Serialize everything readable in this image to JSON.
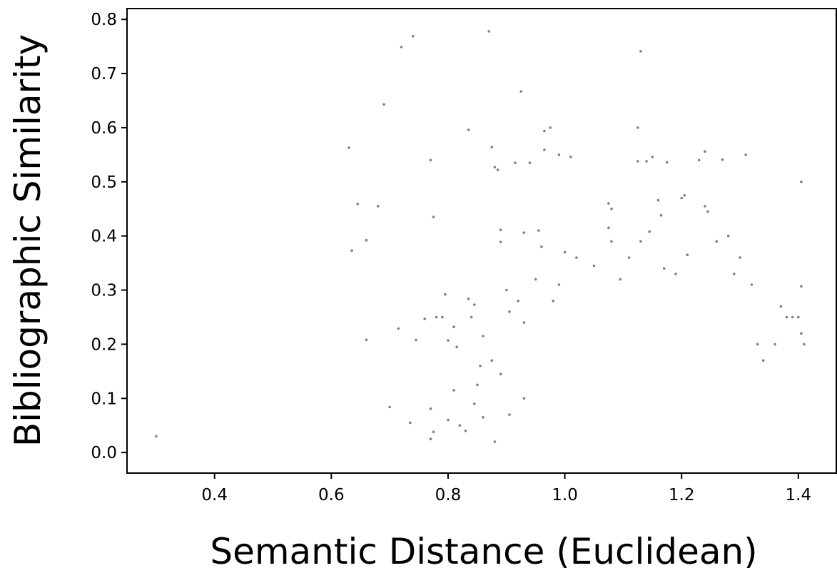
{
  "chart_data": {
    "type": "scatter",
    "xlabel": "Semantic Distance (Euclidean)",
    "ylabel": "Bibliographic Similarity",
    "xlim": [
      0.25,
      1.465
    ],
    "ylim": [
      -0.038,
      0.82
    ],
    "xticks": [
      0.4,
      0.6,
      0.8,
      1.0,
      1.2,
      1.4
    ],
    "xtick_labels": [
      "0.4",
      "0.6",
      "0.8",
      "1.0",
      "1.2",
      "1.4"
    ],
    "yticks": [
      0.0,
      0.1,
      0.2,
      0.3,
      0.4,
      0.5,
      0.6,
      0.7,
      0.8
    ],
    "ytick_labels": [
      "0.0",
      "0.1",
      "0.2",
      "0.3",
      "0.4",
      "0.5",
      "0.6",
      "0.7",
      "0.8"
    ],
    "grid": false,
    "marker_color": "#808080",
    "points": [
      [
        0.3,
        0.03
      ],
      [
        0.63,
        0.563
      ],
      [
        0.635,
        0.373
      ],
      [
        0.645,
        0.459
      ],
      [
        0.66,
        0.208
      ],
      [
        0.66,
        0.392
      ],
      [
        0.68,
        0.455
      ],
      [
        0.69,
        0.643
      ],
      [
        0.7,
        0.084
      ],
      [
        0.715,
        0.229
      ],
      [
        0.72,
        0.749
      ],
      [
        0.735,
        0.055
      ],
      [
        0.74,
        0.769
      ],
      [
        0.745,
        0.208
      ],
      [
        0.76,
        0.247
      ],
      [
        0.77,
        0.54
      ],
      [
        0.775,
        0.435
      ],
      [
        0.77,
        0.081
      ],
      [
        0.775,
        0.038
      ],
      [
        0.77,
        0.025
      ],
      [
        0.795,
        0.292
      ],
      [
        0.79,
        0.25
      ],
      [
        0.78,
        0.25
      ],
      [
        0.8,
        0.207
      ],
      [
        0.81,
        0.115
      ],
      [
        0.81,
        0.232
      ],
      [
        0.815,
        0.195
      ],
      [
        0.835,
        0.596
      ],
      [
        0.835,
        0.284
      ],
      [
        0.84,
        0.25
      ],
      [
        0.845,
        0.273
      ],
      [
        0.82,
        0.05
      ],
      [
        0.85,
        0.125
      ],
      [
        0.855,
        0.16
      ],
      [
        0.87,
        0.778
      ],
      [
        0.875,
        0.564
      ],
      [
        0.88,
        0.527
      ],
      [
        0.885,
        0.522
      ],
      [
        0.89,
        0.411
      ],
      [
        0.89,
        0.389
      ],
      [
        0.9,
        0.3
      ],
      [
        0.905,
        0.26
      ],
      [
        0.915,
        0.535
      ],
      [
        0.925,
        0.667
      ],
      [
        0.93,
        0.406
      ],
      [
        0.94,
        0.535
      ],
      [
        0.955,
        0.41
      ],
      [
        0.96,
        0.38
      ],
      [
        0.965,
        0.594
      ],
      [
        0.965,
        0.559
      ],
      [
        0.975,
        0.6
      ],
      [
        0.99,
        0.55
      ],
      [
        1.01,
        0.546
      ],
      [
        1.0,
        0.37
      ],
      [
        1.02,
        0.36
      ],
      [
        1.05,
        0.345
      ],
      [
        1.075,
        0.46
      ],
      [
        1.08,
        0.45
      ],
      [
        1.075,
        0.415
      ],
      [
        1.08,
        0.39
      ],
      [
        1.11,
        0.36
      ],
      [
        1.125,
        0.6
      ],
      [
        1.125,
        0.538
      ],
      [
        1.13,
        0.741
      ],
      [
        1.14,
        0.538
      ],
      [
        1.15,
        0.546
      ],
      [
        1.145,
        0.408
      ],
      [
        1.16,
        0.466
      ],
      [
        1.165,
        0.438
      ],
      [
        1.175,
        0.536
      ],
      [
        1.2,
        0.47
      ],
      [
        1.205,
        0.475
      ],
      [
        1.21,
        0.365
      ],
      [
        1.23,
        0.54
      ],
      [
        1.24,
        0.556
      ],
      [
        1.24,
        0.455
      ],
      [
        1.245,
        0.445
      ],
      [
        1.27,
        0.541
      ],
      [
        1.28,
        0.4
      ],
      [
        1.31,
        0.55
      ],
      [
        1.3,
        0.36
      ],
      [
        1.405,
        0.307
      ],
      [
        1.405,
        0.5
      ],
      [
        1.37,
        0.27
      ],
      [
        1.38,
        0.25
      ],
      [
        1.39,
        0.25
      ],
      [
        1.4,
        0.25
      ],
      [
        1.405,
        0.22
      ],
      [
        1.41,
        0.2
      ],
      [
        1.36,
        0.2
      ],
      [
        1.33,
        0.2
      ],
      [
        1.34,
        0.17
      ],
      [
        1.095,
        0.32
      ],
      [
        1.13,
        0.39
      ],
      [
        1.17,
        0.34
      ],
      [
        1.19,
        0.33
      ],
      [
        1.26,
        0.39
      ],
      [
        1.29,
        0.33
      ],
      [
        1.32,
        0.31
      ],
      [
        0.98,
        0.28
      ],
      [
        0.99,
        0.31
      ],
      [
        0.95,
        0.32
      ],
      [
        0.92,
        0.28
      ],
      [
        0.93,
        0.24
      ],
      [
        0.86,
        0.215
      ],
      [
        0.875,
        0.17
      ],
      [
        0.89,
        0.145
      ],
      [
        0.845,
        0.09
      ],
      [
        0.83,
        0.04
      ],
      [
        0.86,
        0.065
      ],
      [
        0.88,
        0.02
      ],
      [
        0.8,
        0.06
      ],
      [
        0.905,
        0.07
      ],
      [
        0.93,
        0.1
      ]
    ]
  }
}
